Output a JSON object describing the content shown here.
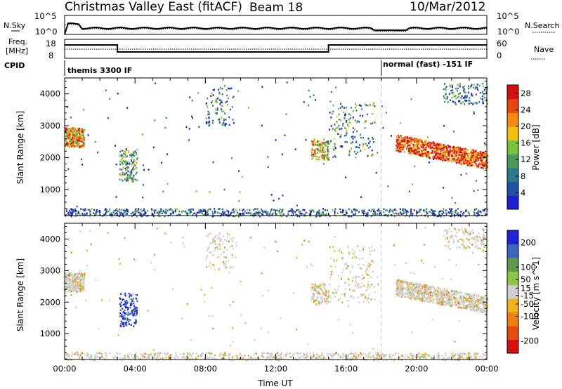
{
  "header": {
    "title": "Christmas Valley East (fitACF)",
    "beam": "Beam 18",
    "date": "10/Mar/2012"
  },
  "colors": {
    "power_scale": [
      "#1e1ed2",
      "#1f52a8",
      "#2b7a8a",
      "#4a9a5a",
      "#7ac23a",
      "#f2c10c",
      "#f58a0c",
      "#e8460c",
      "#d80f0f"
    ],
    "velocity_scale": [
      "#1e22d8",
      "#3a66c0",
      "#5f9a48",
      "#8cc644",
      "#cfcfcf",
      "#f2b21a",
      "#f27e10",
      "#e84a10",
      "#d80f0f"
    ],
    "dashed_line": "#c8c8c8"
  },
  "status_panels": {
    "nsky_label": "N.Sky",
    "nsearch_label": "N.Search",
    "freq_label_line1": "Freq.",
    "freq_label_line2": "[MHz]",
    "nave_label": "Nave",
    "cpid_label": "CPID",
    "noise_ticks_left": [
      "10^5",
      "10^0"
    ],
    "noise_ticks_right": [
      "10^5",
      "10^0"
    ],
    "freq_ticks_left": [
      "18",
      "8"
    ],
    "freq_ticks_right": [
      "60",
      "0"
    ],
    "cpid_segments": [
      {
        "label": "themis 3300 IF",
        "start_hour": 0
      },
      {
        "label": "normal (fast) -151 IF",
        "start_hour": 18
      }
    ]
  },
  "chart_data": [
    {
      "type": "heatmap",
      "title": "",
      "xlabel": "",
      "ylabel": "Slant Range [km]",
      "x_range_hours": [
        0,
        24
      ],
      "xlim": [
        "00:00",
        "00:00"
      ],
      "yticks": [
        1000,
        2000,
        3000,
        4000
      ],
      "ylim": [
        180,
        4500
      ],
      "colorbar": {
        "label": "Power [dB]",
        "ticks": [
          4,
          8,
          12,
          16,
          20,
          24,
          28
        ],
        "range": [
          0,
          30
        ]
      },
      "dashed_vertical_line_hour": 18
    },
    {
      "type": "heatmap",
      "title": "",
      "xlabel": "Time UT",
      "ylabel": "Slant Range [km]",
      "x_range_hours": [
        0,
        24
      ],
      "xticks": [
        "00:00",
        "04:00",
        "08:00",
        "12:00",
        "16:00",
        "20:00",
        "00:00"
      ],
      "yticks": [
        1000,
        2000,
        3000,
        4000
      ],
      "ylim": [
        180,
        4500
      ],
      "colorbar": {
        "label": "Velocity [m s^-1]",
        "ticks": [
          -200,
          -100,
          -50,
          -15,
          15,
          50,
          100,
          200
        ],
        "tick_labels": [
          "-200",
          "-100",
          "-50",
          "-15",
          "15",
          "50",
          "100",
          "200"
        ],
        "range": [
          -250,
          250
        ]
      },
      "dashed_vertical_line_hour": 18
    }
  ]
}
